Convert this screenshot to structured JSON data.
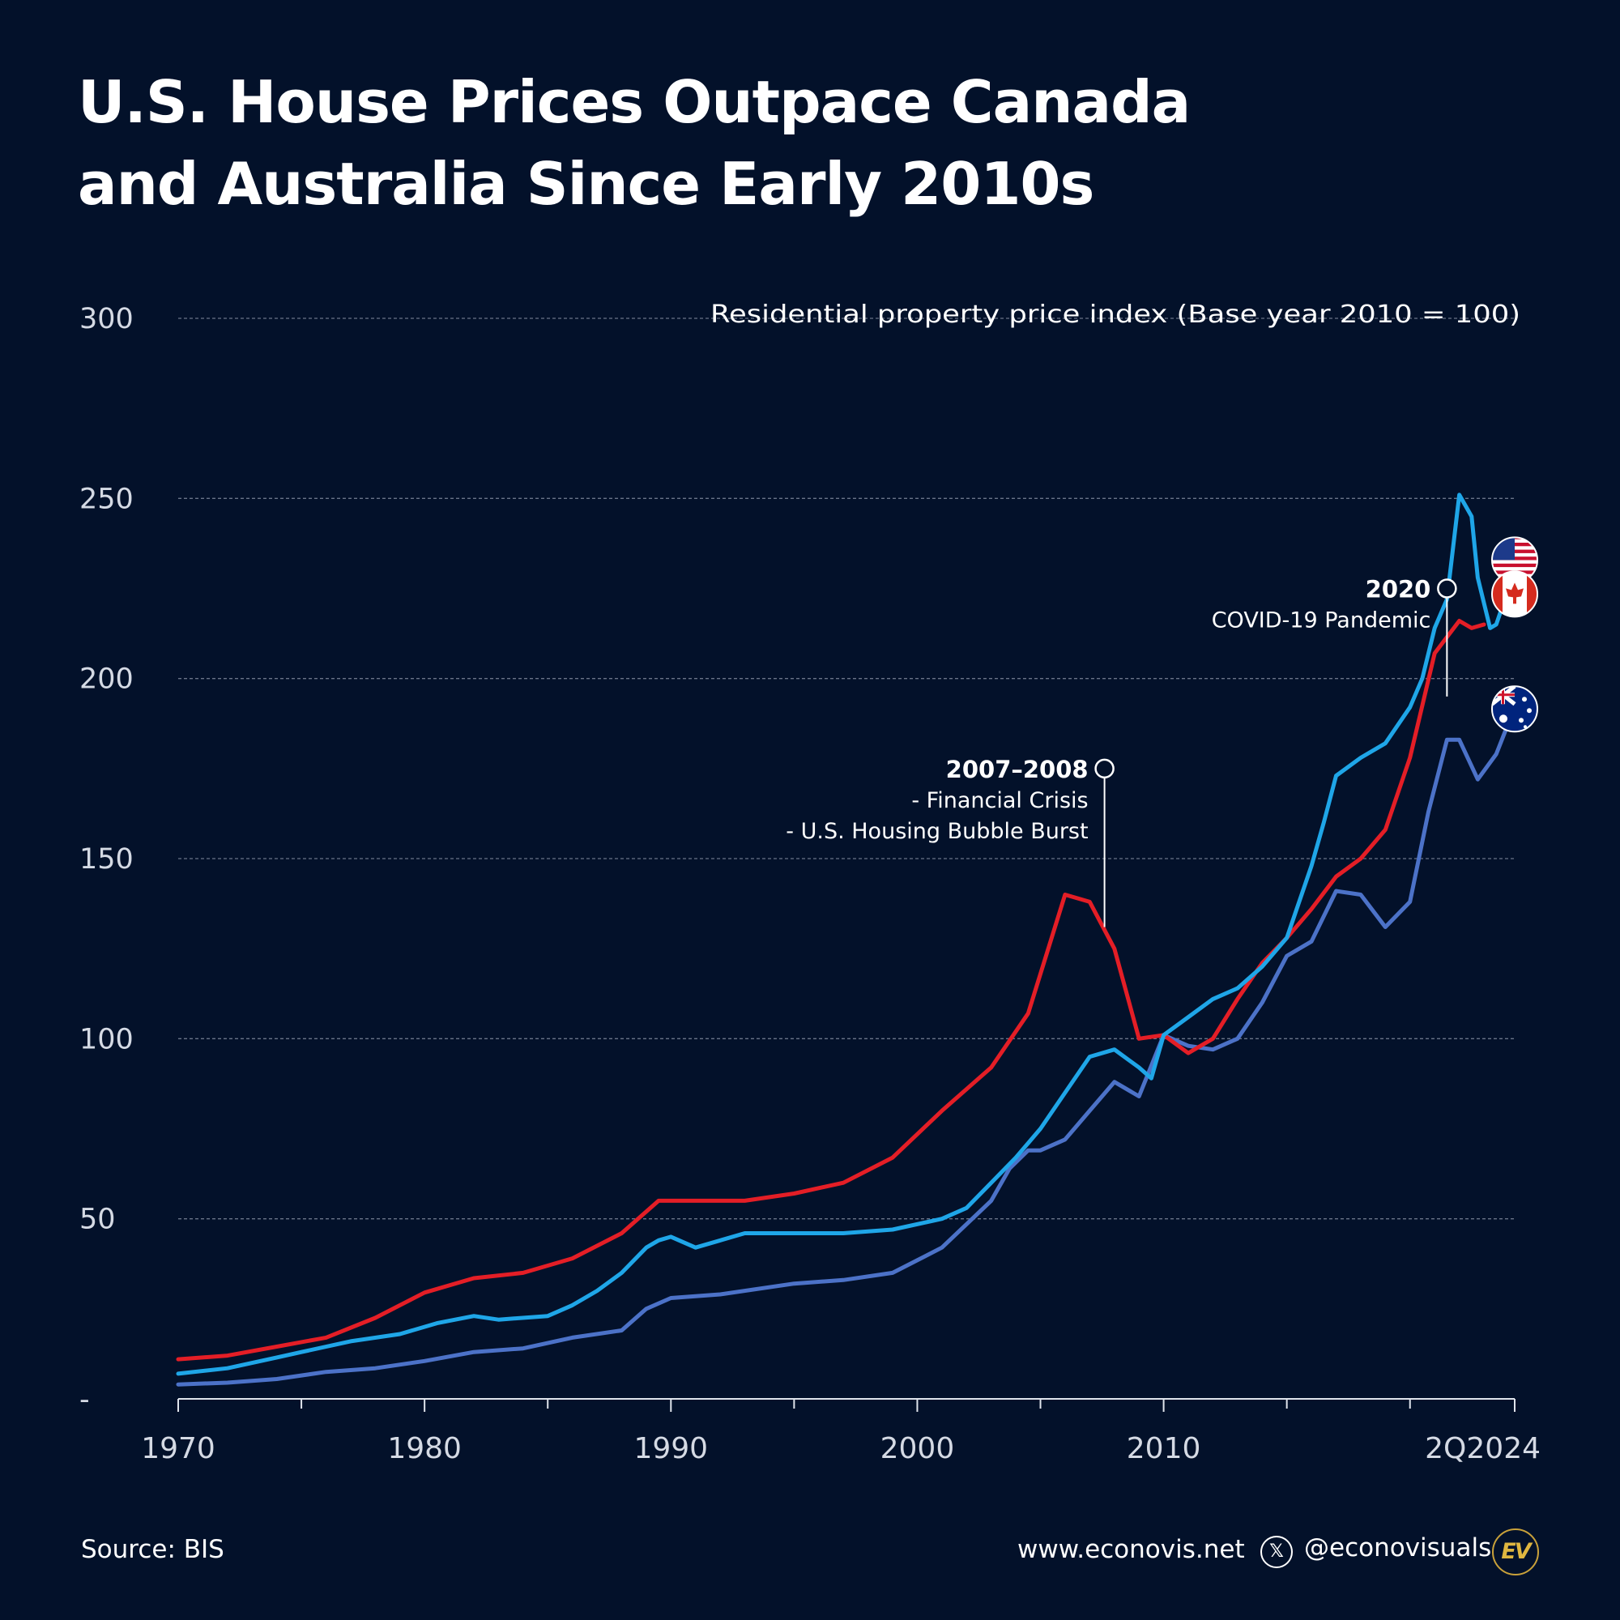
{
  "title": {
    "line1": "U.S. House Prices Outpace Canada",
    "line2": "and Australia Since Early 2010s"
  },
  "chart_data": {
    "type": "line",
    "ylabel": "Residential property price index (Base year 2010 = 100)",
    "ylim": [
      0,
      300
    ],
    "xlim": [
      1970,
      2024.25
    ],
    "yticks": [
      {
        "value": 0,
        "label": "-"
      },
      {
        "value": 50,
        "label": "50"
      },
      {
        "value": 100,
        "label": "100"
      },
      {
        "value": 150,
        "label": "150"
      },
      {
        "value": 200,
        "label": "200"
      },
      {
        "value": 250,
        "label": "250"
      },
      {
        "value": 300,
        "label": "300"
      }
    ],
    "xticks": [
      {
        "value": 1970,
        "label": "1970"
      },
      {
        "value": 1980,
        "label": "1980"
      },
      {
        "value": 1990,
        "label": "1990"
      },
      {
        "value": 2000,
        "label": "2000"
      },
      {
        "value": 2010,
        "label": "2010"
      },
      {
        "value": 2024.25,
        "label": "2Q2024"
      }
    ],
    "minor_ticks": [
      1975,
      1985,
      1995,
      2005,
      2015,
      2020
    ],
    "grid": true,
    "series": [
      {
        "name": "United States",
        "color": "#e41e26",
        "flag": "us-flag",
        "x": [
          1970,
          1972,
          1974,
          1976,
          1978,
          1980,
          1982,
          1984,
          1986,
          1988,
          1989.5,
          1991,
          1993,
          1995,
          1997,
          1999,
          2001,
          2003,
          2004.5,
          2006,
          2007,
          2008,
          2009,
          2010,
          2011,
          2012,
          2013,
          2014,
          2015,
          2016,
          2017,
          2018,
          2019,
          2020,
          2021,
          2022,
          2022.5,
          2023
        ],
        "values": [
          11,
          12,
          14.5,
          17,
          22.5,
          29.5,
          33.5,
          35,
          39,
          46,
          55,
          55,
          55,
          57,
          60,
          67,
          80,
          92,
          107,
          140,
          138,
          125,
          100,
          101,
          96,
          100,
          111,
          121,
          128,
          136,
          145,
          150,
          158,
          178,
          207,
          216,
          214,
          215
        ]
      },
      {
        "name": "Canada",
        "color": "#1fa6e8",
        "flag": "canada-flag",
        "x": [
          1970,
          1972,
          1974,
          1975,
          1977,
          1979,
          1980.5,
          1982,
          1983,
          1985,
          1986,
          1987,
          1988,
          1989,
          1989.5,
          1990,
          1991,
          1993,
          1995,
          1997,
          1999,
          2001,
          2002,
          2003,
          2004,
          2005,
          2006,
          2007,
          2008,
          2009,
          2009.5,
          2010,
          2011,
          2012,
          2013,
          2014,
          2015,
          2016,
          2016.5,
          2017,
          2018,
          2019,
          2020,
          2020.5,
          2021,
          2021.5,
          2022,
          2022.5,
          2022.75,
          2023.25,
          2023.5,
          2024,
          2024.25
        ],
        "values": [
          7,
          8.5,
          11.5,
          13,
          16,
          18,
          21,
          23,
          22,
          23,
          26,
          30,
          35,
          42,
          44,
          45,
          42,
          46,
          46,
          46,
          47,
          50,
          53,
          60,
          67,
          75,
          85,
          95,
          97,
          92,
          89,
          101,
          106,
          111,
          114,
          120,
          128,
          148,
          160,
          173,
          178,
          182,
          192,
          200,
          214,
          222,
          251,
          245,
          228,
          214,
          215,
          225,
          223
        ]
      },
      {
        "name": "Australia",
        "color": "#4c72c8",
        "flag": "australia-flag",
        "x": [
          1970,
          1972,
          1974,
          1976,
          1978,
          1980,
          1982,
          1984,
          1986,
          1988,
          1989,
          1990,
          1992,
          1995,
          1997,
          1999,
          2001,
          2003,
          2003.75,
          2004.5,
          2005,
          2006,
          2007,
          2008,
          2009,
          2010,
          2011,
          2012,
          2013,
          2014,
          2015,
          2016,
          2017,
          2018,
          2019,
          2020,
          2020.75,
          2021.5,
          2022,
          2022.75,
          2023.5,
          2024.25
        ],
        "values": [
          4,
          4.5,
          5.5,
          7.5,
          8.5,
          10.5,
          13,
          14,
          17,
          19,
          25,
          28,
          29,
          32,
          33,
          35,
          42,
          55,
          64,
          69,
          69,
          72,
          80,
          88,
          84,
          101,
          98,
          97,
          100,
          110,
          123,
          127,
          141,
          140,
          131,
          138,
          163,
          183,
          183,
          172,
          179,
          192
        ]
      }
    ],
    "annotations": [
      {
        "x": 2007.6,
        "y": 175,
        "year": "2007–2008",
        "lines": [
          "- Financial Crisis",
          "- U.S. Housing Bubble Burst"
        ],
        "target_y": 131
      },
      {
        "x": 2021.5,
        "y": 225,
        "year": "2020",
        "lines": [
          "COVID-19 Pandemic"
        ],
        "target_y": 195
      }
    ]
  },
  "footer": {
    "source": "Source: BIS",
    "website": "www.econovis.net",
    "x_icon": "𝕏",
    "handle": "@econovisuals",
    "logo": "EV"
  }
}
